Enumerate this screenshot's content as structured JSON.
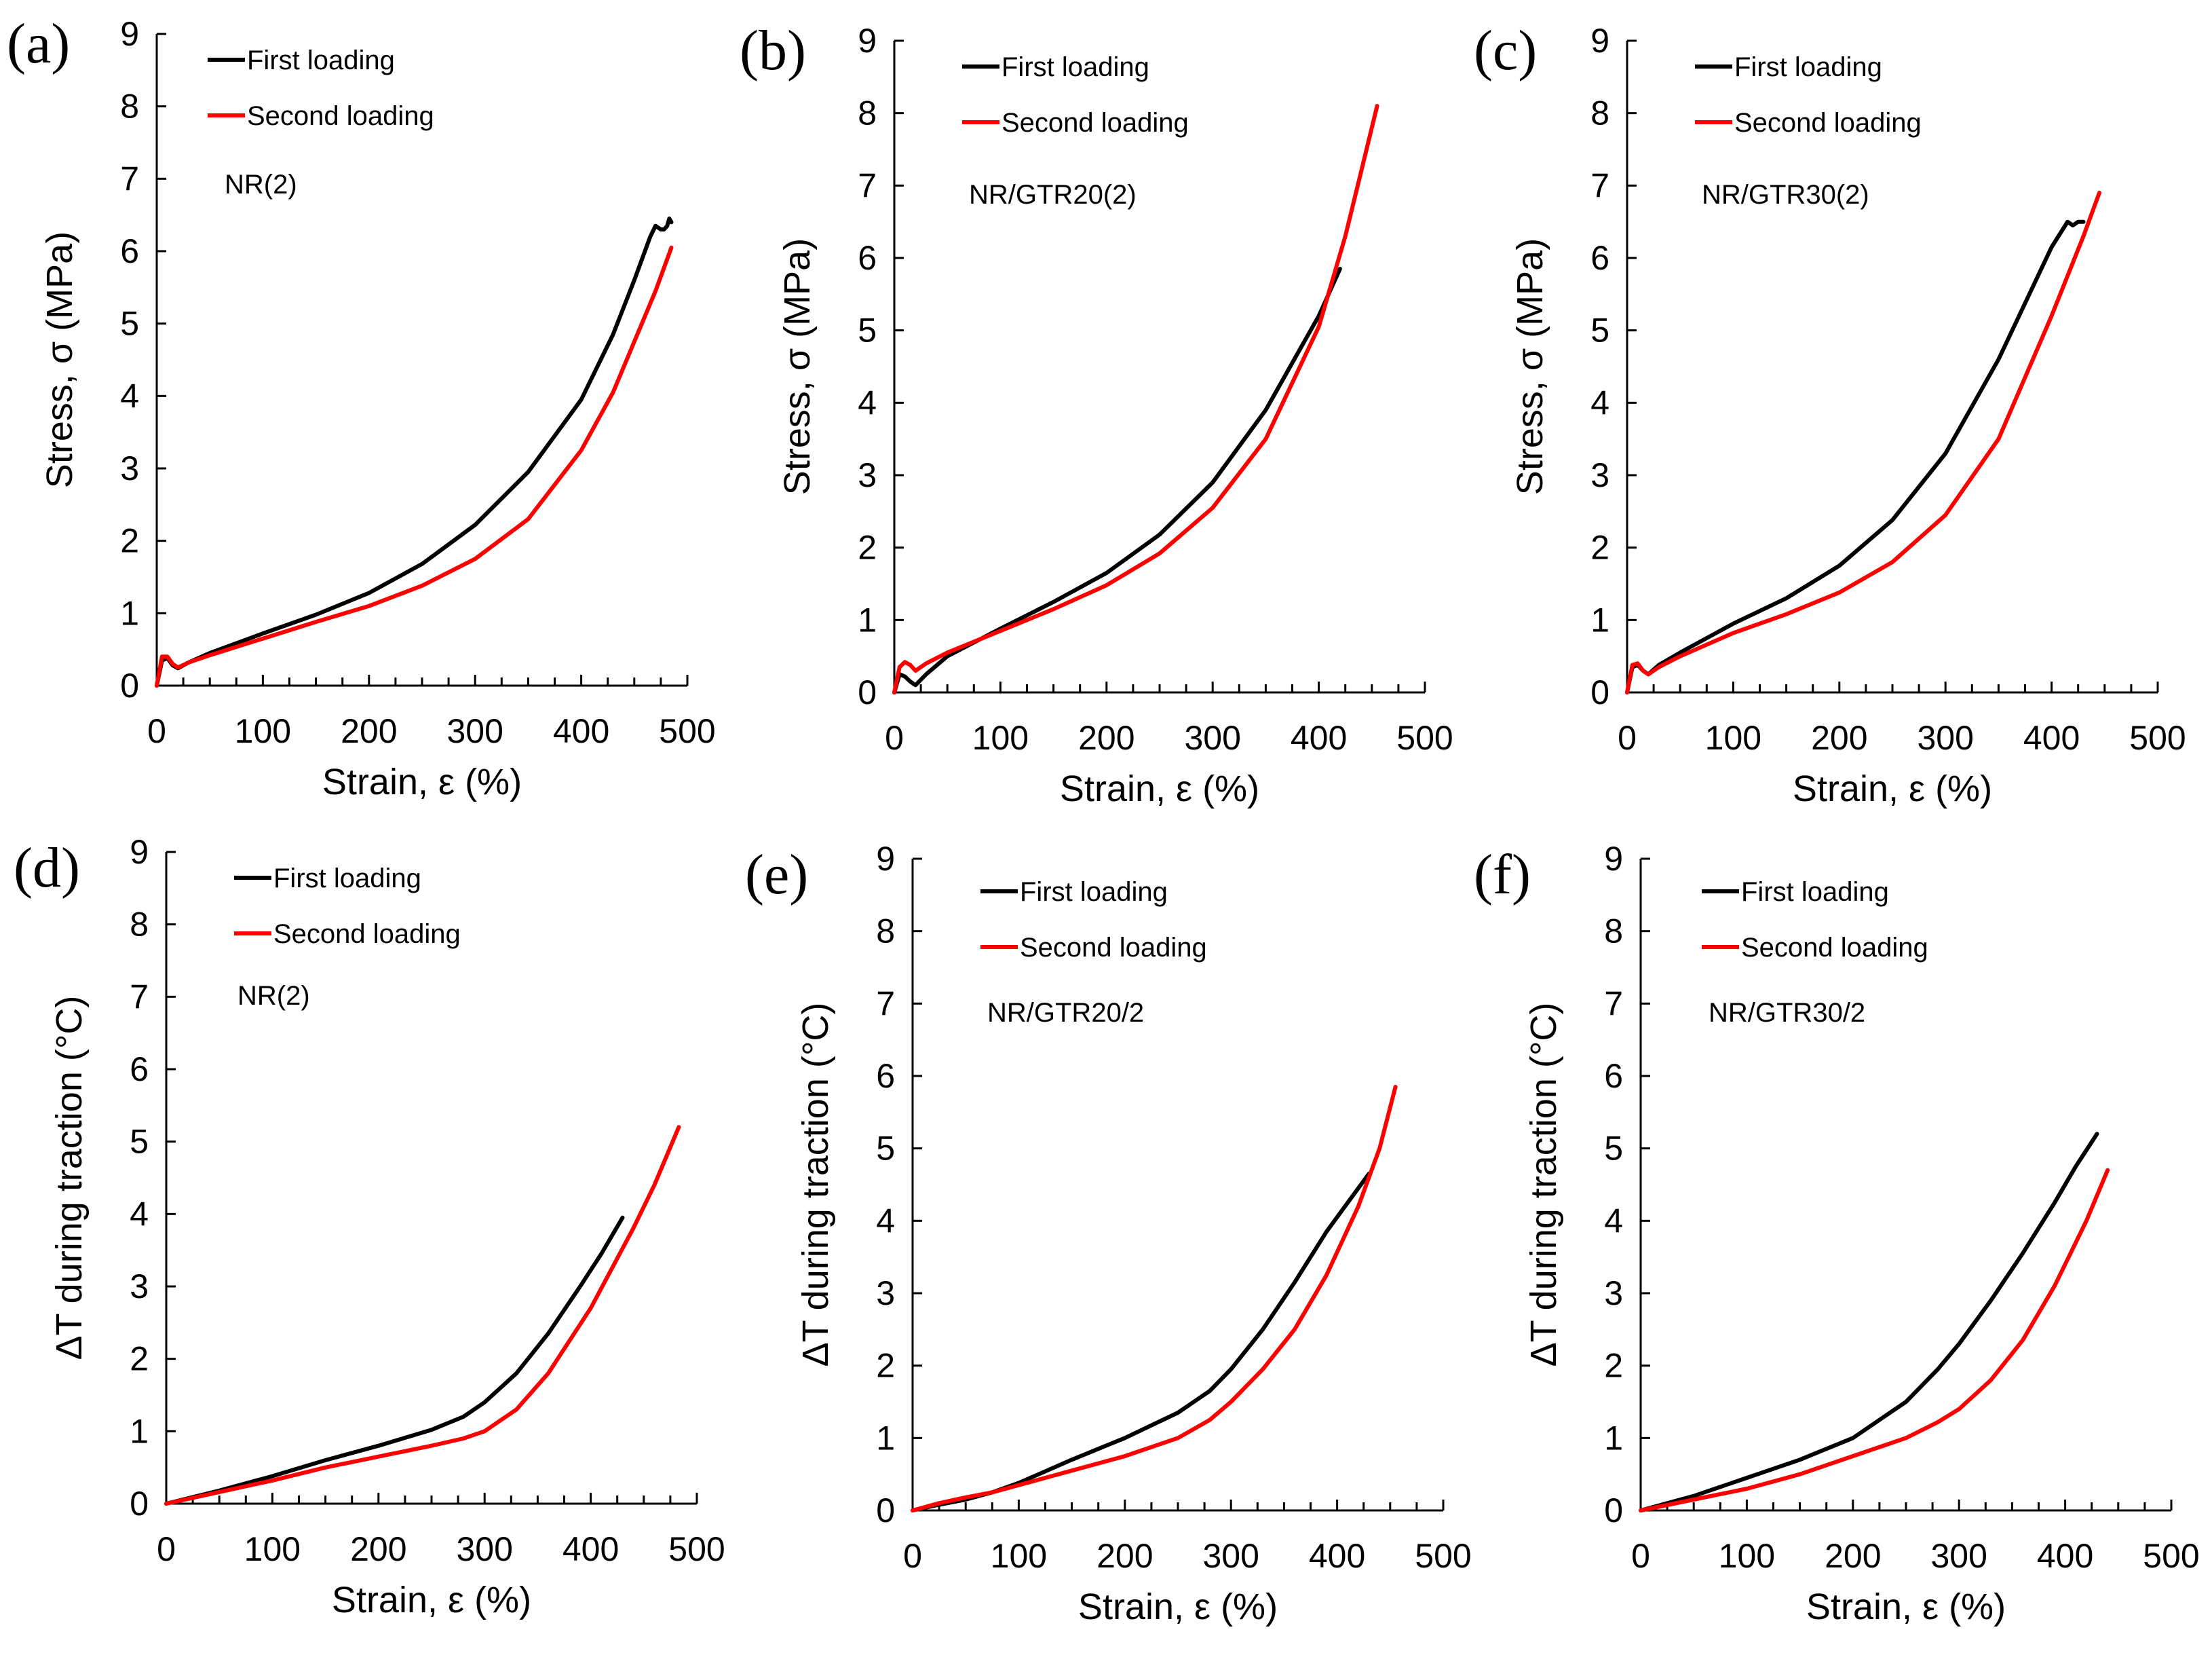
{
  "figure": {
    "series_colors": {
      "First loading": "#000000",
      "Second loading": "#ff0000"
    }
  },
  "chart_data": [
    {
      "type": "line",
      "panel_label": "(a)",
      "title": "",
      "xlabel": "Strain, ε (%)",
      "ylabel": "Stress,  σ (MPa)",
      "xlim": [
        0,
        500
      ],
      "ylim": [
        0,
        9
      ],
      "xticks": [
        0,
        100,
        200,
        300,
        400,
        500
      ],
      "yticks": [
        0,
        1,
        2,
        3,
        4,
        5,
        6,
        7,
        8,
        9
      ],
      "grid": false,
      "legend_position": "top-left",
      "annotation": "NR(2)",
      "series": [
        {
          "name": "First loading",
          "color": "#000000",
          "x": [
            0,
            5,
            10,
            15,
            20,
            30,
            50,
            100,
            150,
            200,
            250,
            300,
            350,
            400,
            430,
            450,
            465,
            470,
            475,
            478,
            481,
            483,
            485
          ],
          "y": [
            0,
            0.35,
            0.38,
            0.28,
            0.24,
            0.32,
            0.45,
            0.72,
            0.98,
            1.28,
            1.68,
            2.22,
            2.95,
            3.95,
            4.85,
            5.6,
            6.2,
            6.35,
            6.3,
            6.3,
            6.35,
            6.45,
            6.4
          ]
        },
        {
          "name": "Second loading",
          "color": "#ff0000",
          "x": [
            0,
            5,
            10,
            15,
            20,
            30,
            50,
            100,
            150,
            200,
            250,
            300,
            350,
            400,
            430,
            450,
            470,
            485
          ],
          "y": [
            0,
            0.4,
            0.4,
            0.3,
            0.25,
            0.32,
            0.42,
            0.65,
            0.88,
            1.1,
            1.38,
            1.75,
            2.3,
            3.25,
            4.05,
            4.75,
            5.45,
            6.05
          ]
        }
      ]
    },
    {
      "type": "line",
      "panel_label": "(b)",
      "title": "",
      "xlabel": "Strain, ε (%)",
      "ylabel": "Stress,  σ (MPa)",
      "xlim": [
        0,
        500
      ],
      "ylim": [
        0,
        9
      ],
      "xticks": [
        0,
        100,
        200,
        300,
        400,
        500
      ],
      "yticks": [
        0,
        1,
        2,
        3,
        4,
        5,
        6,
        7,
        8,
        9
      ],
      "grid": false,
      "legend_position": "top-left",
      "annotation": "NR/GTR20(2)",
      "series": [
        {
          "name": "First loading",
          "color": "#000000",
          "x": [
            0,
            5,
            10,
            15,
            20,
            30,
            50,
            100,
            150,
            200,
            250,
            300,
            350,
            400,
            420
          ],
          "y": [
            0,
            0.25,
            0.22,
            0.15,
            0.1,
            0.25,
            0.5,
            0.88,
            1.25,
            1.65,
            2.18,
            2.9,
            3.9,
            5.2,
            5.85
          ]
        },
        {
          "name": "Second loading",
          "color": "#ff0000",
          "x": [
            0,
            5,
            10,
            15,
            20,
            30,
            50,
            100,
            150,
            200,
            250,
            300,
            350,
            400,
            425,
            440,
            455
          ],
          "y": [
            0,
            0.35,
            0.42,
            0.38,
            0.3,
            0.4,
            0.55,
            0.85,
            1.15,
            1.48,
            1.92,
            2.55,
            3.5,
            5.05,
            6.3,
            7.2,
            8.1
          ]
        }
      ]
    },
    {
      "type": "line",
      "panel_label": "(c)",
      "title": "",
      "xlabel": "Strain, ε (%)",
      "ylabel": "Stress,  σ (MPa)",
      "xlim": [
        0,
        500
      ],
      "ylim": [
        0,
        9
      ],
      "xticks": [
        0,
        100,
        200,
        300,
        400,
        500
      ],
      "yticks": [
        0,
        1,
        2,
        3,
        4,
        5,
        6,
        7,
        8,
        9
      ],
      "grid": false,
      "legend_position": "top-left",
      "annotation": "NR/GTR30(2)",
      "series": [
        {
          "name": "First loading",
          "color": "#000000",
          "x": [
            0,
            5,
            10,
            15,
            20,
            30,
            50,
            100,
            150,
            200,
            250,
            300,
            350,
            400,
            415,
            420,
            425,
            430
          ],
          "y": [
            0,
            0.35,
            0.38,
            0.3,
            0.25,
            0.38,
            0.55,
            0.95,
            1.3,
            1.75,
            2.38,
            3.3,
            4.6,
            6.15,
            6.5,
            6.45,
            6.5,
            6.5
          ]
        },
        {
          "name": "Second loading",
          "color": "#ff0000",
          "x": [
            0,
            5,
            10,
            15,
            20,
            30,
            50,
            100,
            150,
            200,
            250,
            300,
            350,
            400,
            430,
            445
          ],
          "y": [
            0,
            0.38,
            0.4,
            0.3,
            0.25,
            0.35,
            0.5,
            0.82,
            1.08,
            1.38,
            1.8,
            2.45,
            3.5,
            5.2,
            6.3,
            6.9
          ]
        }
      ]
    },
    {
      "type": "line",
      "panel_label": "(d)",
      "title": "",
      "xlabel": "Strain, ε (%)",
      "ylabel": "ΔT during traction (°C)",
      "xlim": [
        0,
        500
      ],
      "ylim": [
        0,
        9
      ],
      "xticks": [
        0,
        100,
        200,
        300,
        400,
        500
      ],
      "yticks": [
        0,
        1,
        2,
        3,
        4,
        5,
        6,
        7,
        8,
        9
      ],
      "grid": false,
      "legend_position": "top-left",
      "annotation": "NR(2)",
      "series": [
        {
          "name": "First loading",
          "color": "#000000",
          "x": [
            0,
            50,
            100,
            150,
            200,
            250,
            280,
            300,
            330,
            360,
            390,
            410,
            430
          ],
          "y": [
            0,
            0.18,
            0.38,
            0.6,
            0.8,
            1.02,
            1.2,
            1.4,
            1.8,
            2.35,
            3.0,
            3.45,
            3.95
          ]
        },
        {
          "name": "Second loading",
          "color": "#ff0000",
          "x": [
            0,
            50,
            100,
            150,
            200,
            250,
            280,
            300,
            330,
            360,
            400,
            440,
            460,
            483
          ],
          "y": [
            0,
            0.16,
            0.32,
            0.5,
            0.65,
            0.8,
            0.9,
            1.0,
            1.3,
            1.8,
            2.7,
            3.8,
            4.4,
            5.2
          ]
        }
      ]
    },
    {
      "type": "line",
      "panel_label": "(e)",
      "title": "",
      "xlabel": "Strain, ε (%)",
      "ylabel": "ΔT during traction (°C)",
      "xlim": [
        0,
        500
      ],
      "ylim": [
        0,
        9
      ],
      "xticks": [
        0,
        100,
        200,
        300,
        400,
        500
      ],
      "yticks": [
        0,
        1,
        2,
        3,
        4,
        5,
        6,
        7,
        8,
        9
      ],
      "grid": false,
      "legend_position": "top-left",
      "annotation": "NR/GTR20/2",
      "series": [
        {
          "name": "First loading",
          "color": "#000000",
          "x": [
            0,
            25,
            50,
            75,
            100,
            150,
            200,
            250,
            280,
            300,
            330,
            360,
            390,
            410,
            430
          ],
          "y": [
            0,
            0.08,
            0.15,
            0.25,
            0.38,
            0.7,
            1.0,
            1.35,
            1.65,
            1.95,
            2.5,
            3.15,
            3.85,
            4.25,
            4.65
          ]
        },
        {
          "name": "Second loading",
          "color": "#ff0000",
          "x": [
            0,
            25,
            50,
            75,
            100,
            150,
            200,
            250,
            280,
            300,
            330,
            360,
            390,
            420,
            440,
            455
          ],
          "y": [
            0,
            0.1,
            0.18,
            0.25,
            0.35,
            0.55,
            0.75,
            1.0,
            1.25,
            1.5,
            1.95,
            2.5,
            3.25,
            4.2,
            5.0,
            5.85
          ]
        }
      ]
    },
    {
      "type": "line",
      "panel_label": "(f)",
      "title": "",
      "xlabel": "Strain, ε (%)",
      "ylabel": "ΔT during traction (°C)",
      "xlim": [
        0,
        500
      ],
      "ylim": [
        0,
        9
      ],
      "xticks": [
        0,
        100,
        200,
        300,
        400,
        500
      ],
      "yticks": [
        0,
        1,
        2,
        3,
        4,
        5,
        6,
        7,
        8,
        9
      ],
      "grid": false,
      "legend_position": "top-left",
      "annotation": "NR/GTR30/2",
      "series": [
        {
          "name": "First loading",
          "color": "#000000",
          "x": [
            0,
            50,
            100,
            150,
            200,
            250,
            280,
            300,
            330,
            360,
            390,
            410,
            430
          ],
          "y": [
            0,
            0.2,
            0.45,
            0.7,
            1.0,
            1.5,
            1.95,
            2.3,
            2.9,
            3.55,
            4.25,
            4.75,
            5.2
          ]
        },
        {
          "name": "Second loading",
          "color": "#ff0000",
          "x": [
            0,
            50,
            100,
            150,
            200,
            250,
            280,
            300,
            330,
            360,
            390,
            420,
            440
          ],
          "y": [
            0,
            0.15,
            0.3,
            0.5,
            0.75,
            1.0,
            1.22,
            1.4,
            1.8,
            2.35,
            3.1,
            4.0,
            4.7
          ]
        }
      ]
    }
  ]
}
